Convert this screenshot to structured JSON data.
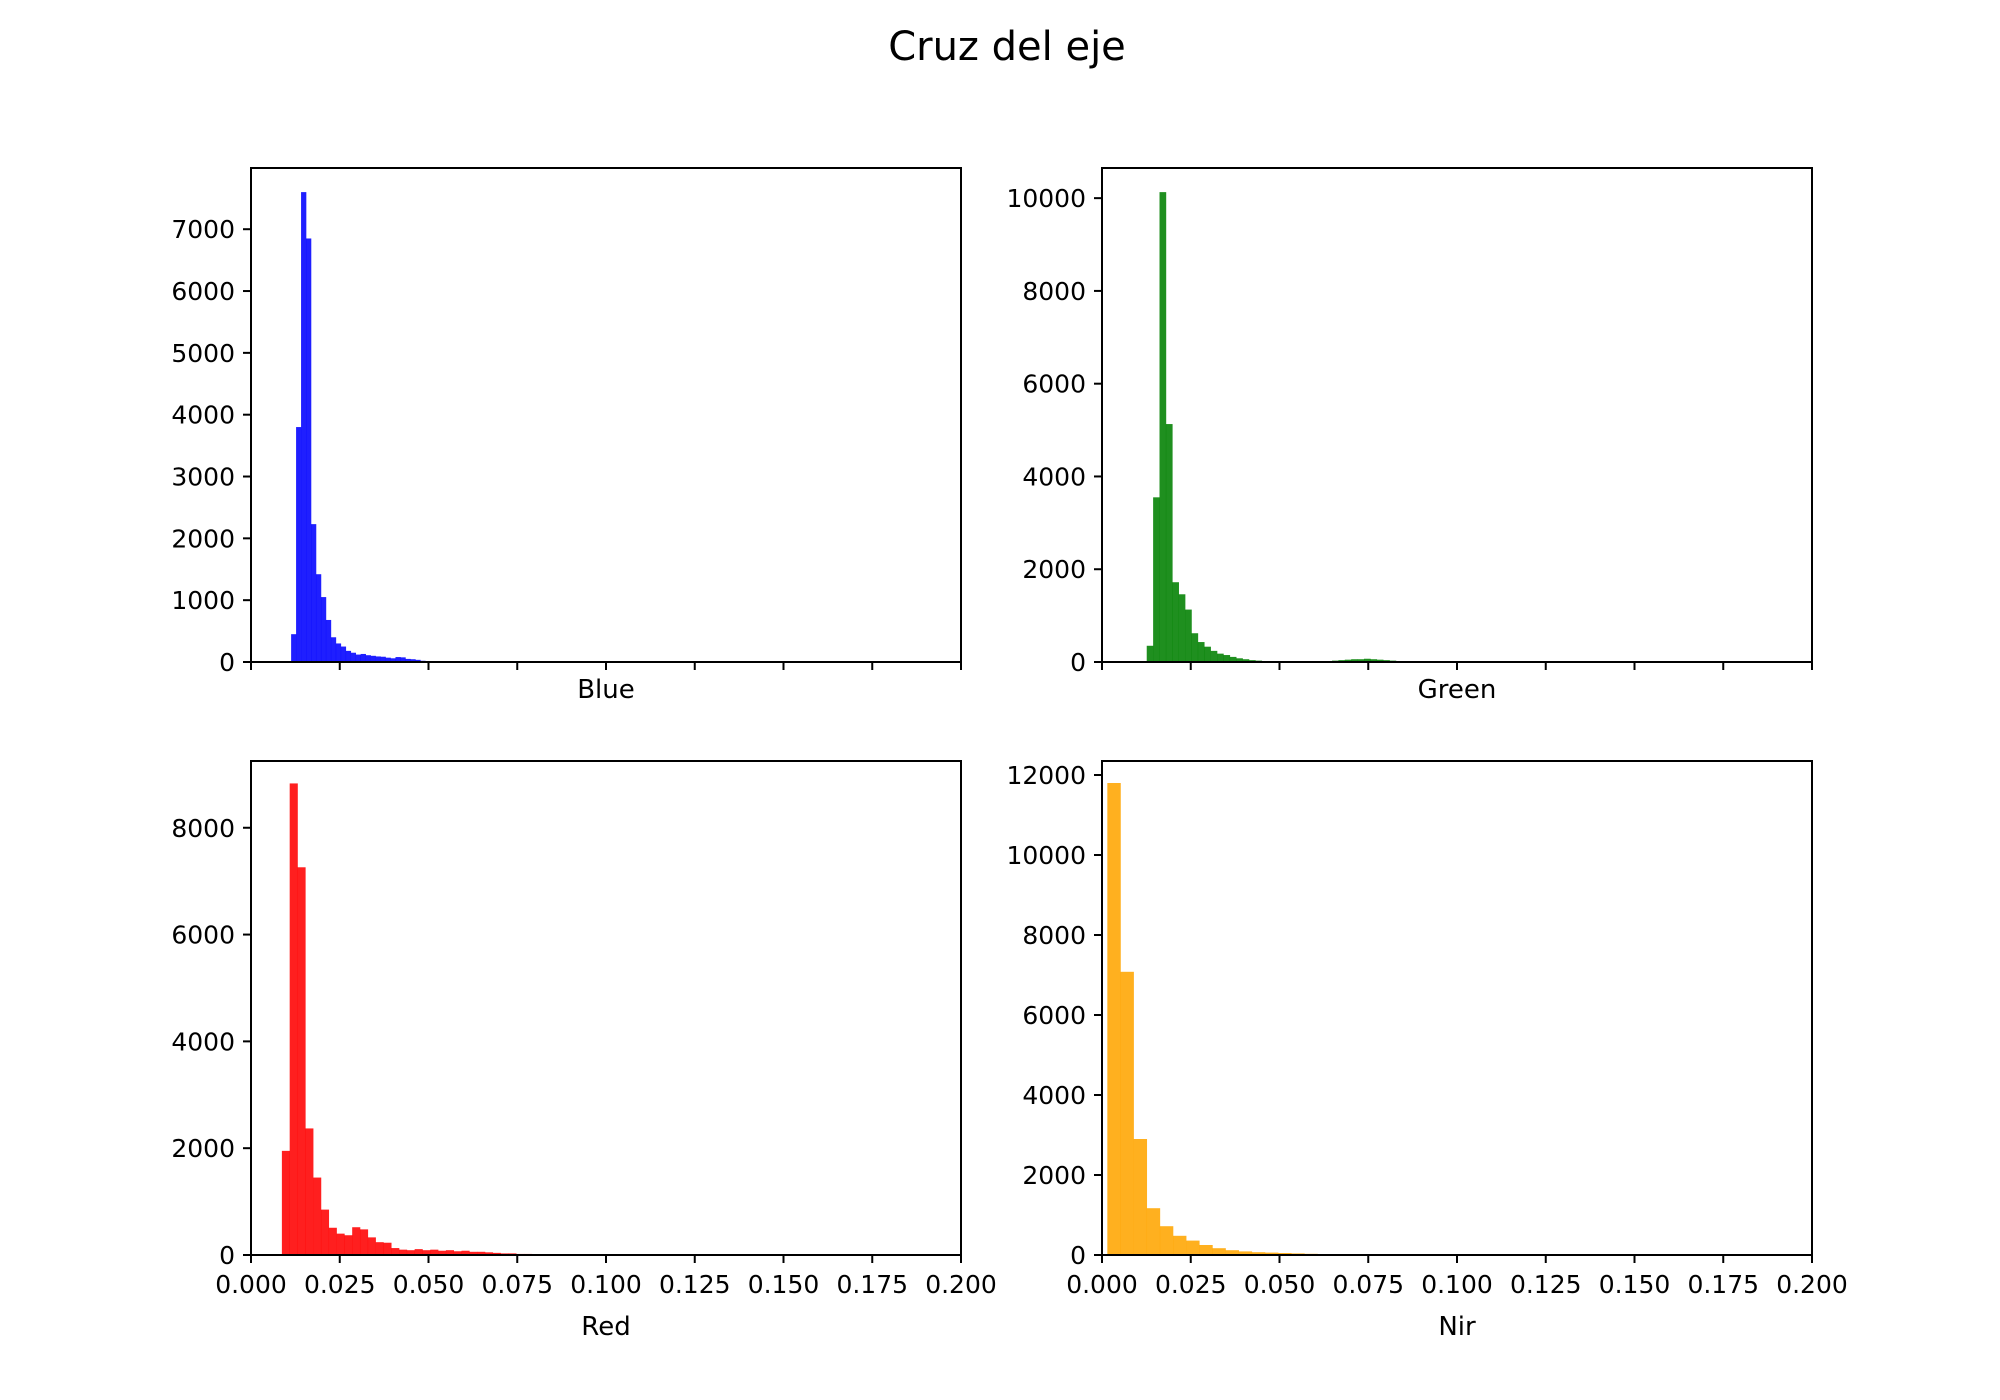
{
  "figure": {
    "title": "Cruz del eje"
  },
  "chart_data": [
    {
      "type": "bar",
      "subtype": "histogram",
      "xlabel": "Blue",
      "ylabel": "",
      "xlim": [
        0.0,
        0.2
      ],
      "ylim": [
        0,
        7990
      ],
      "xticks": [
        "0.000",
        "0.025",
        "0.050",
        "0.075",
        "0.100",
        "0.125",
        "0.150",
        "0.175",
        "0.200"
      ],
      "show_xtick_labels": false,
      "yticks": [
        0,
        1000,
        2000,
        3000,
        4000,
        5000,
        6000,
        7000
      ],
      "color": "#0000ff",
      "bin_start": 0.0113,
      "bin_width": 0.0014,
      "values": [
        450,
        3800,
        7600,
        6850,
        2230,
        1420,
        1050,
        680,
        400,
        300,
        250,
        180,
        150,
        120,
        130,
        110,
        100,
        90,
        85,
        70,
        60,
        80,
        75,
        50,
        45,
        35,
        20,
        15,
        10,
        5
      ]
    },
    {
      "type": "bar",
      "subtype": "histogram",
      "xlabel": "Green",
      "ylabel": "",
      "xlim": [
        0.0,
        0.2
      ],
      "ylim": [
        0,
        10650
      ],
      "xticks": [
        "0.000",
        "0.025",
        "0.050",
        "0.075",
        "0.100",
        "0.125",
        "0.150",
        "0.175",
        "0.200"
      ],
      "show_xtick_labels": false,
      "yticks": [
        0,
        2000,
        4000,
        6000,
        8000,
        10000
      ],
      "color": "#008000",
      "bin_start": 0.0126,
      "bin_width": 0.0018,
      "values": [
        350,
        3550,
        10130,
        5130,
        1720,
        1460,
        1130,
        620,
        430,
        330,
        240,
        180,
        150,
        110,
        80,
        60,
        40,
        30,
        20,
        20,
        15,
        10,
        15,
        10,
        20,
        15,
        10,
        15,
        20,
        30,
        40,
        50,
        60,
        60,
        70,
        60,
        50,
        40,
        30,
        20,
        10
      ]
    },
    {
      "type": "bar",
      "subtype": "histogram",
      "xlabel": "Red",
      "ylabel": "",
      "xlim": [
        0.0,
        0.2
      ],
      "ylim": [
        0,
        9250
      ],
      "xticks": [
        "0.000",
        "0.025",
        "0.050",
        "0.075",
        "0.100",
        "0.125",
        "0.150",
        "0.175",
        "0.200"
      ],
      "show_xtick_labels": true,
      "yticks": [
        0,
        2000,
        4000,
        6000,
        8000
      ],
      "color": "#ff0000",
      "bin_start": 0.0087,
      "bin_width": 0.0022,
      "values": [
        1950,
        8830,
        7260,
        2370,
        1450,
        850,
        510,
        400,
        370,
        520,
        480,
        330,
        240,
        230,
        130,
        100,
        90,
        110,
        90,
        100,
        80,
        90,
        70,
        80,
        60,
        60,
        50,
        40,
        30,
        30,
        20,
        20,
        10,
        10,
        5
      ]
    },
    {
      "type": "bar",
      "subtype": "histogram",
      "xlabel": "Nir",
      "ylabel": "",
      "xlim": [
        0.0,
        0.2
      ],
      "ylim": [
        0,
        12350
      ],
      "xticks": [
        "0.000",
        "0.025",
        "0.050",
        "0.075",
        "0.100",
        "0.125",
        "0.150",
        "0.175",
        "0.200"
      ],
      "show_xtick_labels": true,
      "yticks": [
        0,
        2000,
        4000,
        6000,
        8000,
        10000,
        12000
      ],
      "color": "#ffa500",
      "bin_start": 0.0015,
      "bin_width": 0.0037,
      "values": [
        11800,
        7080,
        2900,
        1170,
        720,
        480,
        360,
        250,
        170,
        120,
        90,
        70,
        60,
        50,
        40,
        30,
        20,
        10
      ]
    }
  ]
}
